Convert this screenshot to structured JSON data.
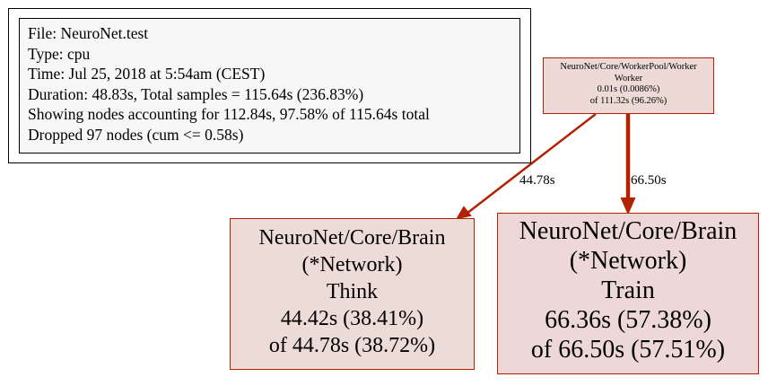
{
  "info": {
    "lines": [
      "File: NeuroNet.test",
      "Type: cpu",
      "Time: Jul 25, 2018 at 5:54am (CEST)",
      "Duration: 48.83s, Total samples = 115.64s (236.83%)",
      "Showing nodes accounting for 112.84s, 97.58% of 115.64s total",
      "Dropped 97 nodes (cum <= 0.58s)"
    ]
  },
  "nodes": {
    "worker": {
      "lines": [
        "NeuroNet/Core/WorkerPool/Worker",
        "Worker",
        "0.01s (0.0086%)",
        "of 111.32s (96.26%)"
      ]
    },
    "think": {
      "lines": [
        "NeuroNet/Core/Brain",
        "(*Network)",
        "Think",
        "44.42s (38.41%)",
        "of 44.78s (38.72%)"
      ]
    },
    "train": {
      "lines": [
        "NeuroNet/Core/Brain",
        "(*Network)",
        "Train",
        "66.36s (57.38%)",
        "of 66.50s (57.51%)"
      ]
    }
  },
  "edges": {
    "to_think": {
      "label": "44.78s"
    },
    "to_train": {
      "label": "66.50s"
    }
  },
  "colors": {
    "edge": "#b22200",
    "border": "#b22200"
  }
}
